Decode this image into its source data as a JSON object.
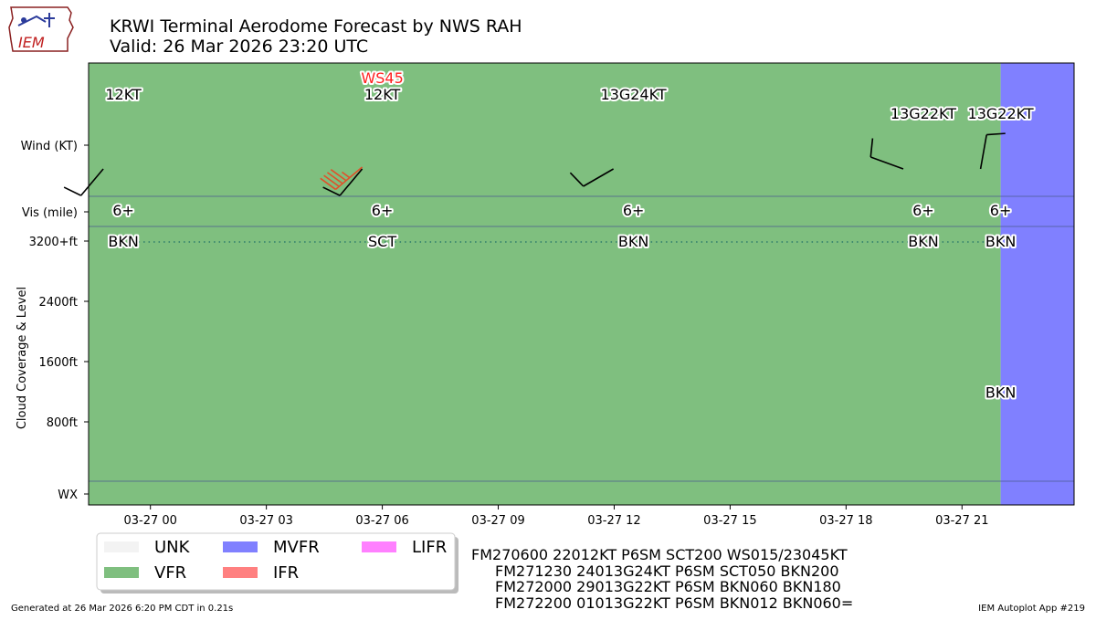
{
  "header": {
    "logo_text": "IEM",
    "title_line1": "KRWI Terminal Aerodome Forecast by NWS RAH",
    "title_line2": "Valid: 26 Mar 2026 23:20 UTC"
  },
  "chart_data": {
    "type": "timeline",
    "x_start_hour": -1.6,
    "x_end_hour": 23.9,
    "x_ticks": [
      {
        "hour": 0,
        "label": "03-27 00"
      },
      {
        "hour": 3,
        "label": "03-27 03"
      },
      {
        "hour": 6,
        "label": "03-27 06"
      },
      {
        "hour": 9,
        "label": "03-27 09"
      },
      {
        "hour": 12,
        "label": "03-27 12"
      },
      {
        "hour": 15,
        "label": "03-27 15"
      },
      {
        "hour": 18,
        "label": "03-27 18"
      },
      {
        "hour": 21,
        "label": "03-27 21"
      }
    ],
    "rows": {
      "wind": "Wind (KT)",
      "vis": "Vis (mile)",
      "cloud_top": "3200+ft",
      "cloud_2400": "2400ft",
      "cloud_1600": "1600ft",
      "cloud_800": "800ft",
      "wx": "WX"
    },
    "ylabel": "Cloud Coverage & Level",
    "category_bands": [
      {
        "category": "VFR",
        "start_hour": -1.6,
        "end_hour": 22.0
      },
      {
        "category": "MVFR",
        "start_hour": 22.0,
        "end_hour": 23.9
      }
    ],
    "forecasts": [
      {
        "hour": -0.7,
        "wind_dir": 220,
        "wind_kt": 12,
        "wind_label": "12KT",
        "vis": "6+",
        "clouds": [
          {
            "cover": "BKN",
            "level": "3200+"
          }
        ],
        "shear": ""
      },
      {
        "hour": 6.0,
        "wind_dir": 220,
        "wind_kt": 12,
        "wind_label": "12KT",
        "vis": "6+",
        "clouds": [
          {
            "cover": "SCT",
            "level": "3200+"
          }
        ],
        "shear": "WS45"
      },
      {
        "hour": 12.5,
        "wind_dir": 240,
        "wind_kt": 13,
        "wind_label": "13G24KT",
        "vis": "6+",
        "clouds": [
          {
            "cover": "BKN",
            "level": "3200+"
          }
        ],
        "shear": ""
      },
      {
        "hour": 20.0,
        "wind_dir": 290,
        "wind_kt": 13,
        "wind_label": "13G22KT",
        "vis": "6+",
        "clouds": [
          {
            "cover": "BKN",
            "level": "3200+"
          }
        ],
        "shear": ""
      },
      {
        "hour": 22.0,
        "wind_dir": 10,
        "wind_kt": 13,
        "wind_label": "13G22KT",
        "vis": "6+",
        "clouds": [
          {
            "cover": "BKN",
            "level": "3200+"
          },
          {
            "cover": "BKN",
            "level": "1200"
          }
        ],
        "shear": ""
      }
    ],
    "shear_barb": {
      "hour": 6.0,
      "wind_dir": 230,
      "wind_kt": 45
    },
    "legend": [
      {
        "label": "UNK",
        "color": "#f3f3f3"
      },
      {
        "label": "VFR",
        "color": "#7fbf7f"
      },
      {
        "label": "MVFR",
        "color": "#8080ff"
      },
      {
        "label": "IFR",
        "color": "#ff8080"
      },
      {
        "label": "LIFR",
        "color": "#ff80ff"
      }
    ]
  },
  "colors": {
    "vfr": "#7fbf7f",
    "mvfr": "#8080ff",
    "divider": "#4a5a8f",
    "shear_text": "#ff2020",
    "shear_barb": "#e0502a",
    "cloud_line": "#2a7a6a"
  },
  "taf": {
    "lines": [
      "FM270600 22012KT P6SM SCT200 WS015/23045KT",
      "FM271230 24013G24KT P6SM SCT050 BKN200",
      "FM272000 29013G22KT P6SM BKN060 BKN180",
      "FM272200 01013G22KT P6SM BKN012 BKN060="
    ]
  },
  "footer": {
    "generated": "Generated at 26 Mar 2026 6:20 PM CDT in 0.21s",
    "app": "IEM Autoplot App #219"
  }
}
